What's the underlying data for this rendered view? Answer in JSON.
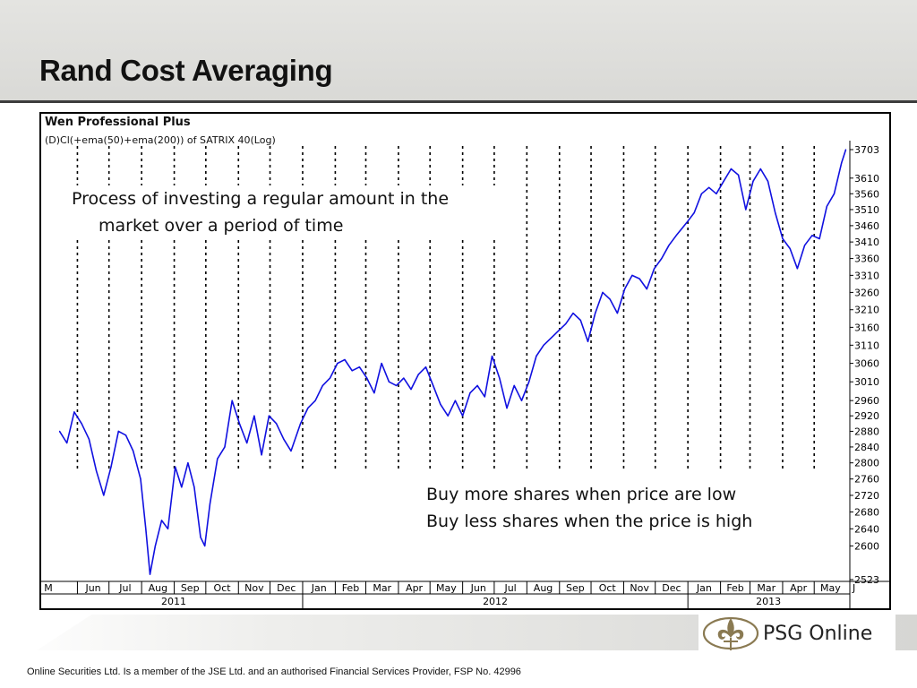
{
  "slide": {
    "title": "Rand Cost Averaging",
    "footer": "Online Securities Ltd. Is a member of the JSE Ltd. and an authorised Financial Services Provider, FSP No. 42996",
    "brand": "PSG Online"
  },
  "annotations": {
    "process_line1": "Process of investing a regular amount in the",
    "process_line2": "market over a period of time",
    "buy_more": "Buy more shares when price are low",
    "buy_less": "Buy less shares when the price is high"
  },
  "colors": {
    "series": "#1010e0",
    "rule": "#3c3c3c",
    "logo_gold": "#8a7a52"
  },
  "chart_data": {
    "type": "line",
    "title": "Wen Professional Plus",
    "subtitle": "(D)Cl(+ema(50)+ema(200)) of SATRIX 40(Log)",
    "y_scale": "log",
    "ylim": [
      2523,
      3703
    ],
    "y_ticks": [
      3703,
      3610,
      3560,
      3510,
      3460,
      3410,
      3360,
      3310,
      3260,
      3210,
      3160,
      3110,
      3060,
      3010,
      2960,
      2920,
      2880,
      2840,
      2800,
      2760,
      2720,
      2680,
      2640,
      2600,
      2523
    ],
    "x_months": [
      "M",
      "Jun",
      "Jul",
      "Aug",
      "Sep",
      "Oct",
      "Nov",
      "Dec",
      "Jan",
      "Feb",
      "Mar",
      "Apr",
      "May",
      "Jun",
      "Jul",
      "Aug",
      "Sep",
      "Oct",
      "Nov",
      "Dec",
      "Jan",
      "Feb",
      "Mar",
      "Apr",
      "May",
      "J"
    ],
    "x_years": [
      "2011",
      "2012",
      "2013"
    ],
    "grid": "vertical dashed at month boundaries",
    "series": [
      {
        "points": [
          [
            "2011-05-15",
            2880
          ],
          [
            "2011-05-22",
            2850
          ],
          [
            "2011-05-29",
            2930
          ],
          [
            "2011-06-05",
            2900
          ],
          [
            "2011-06-12",
            2860
          ],
          [
            "2011-06-19",
            2780
          ],
          [
            "2011-06-26",
            2720
          ],
          [
            "2011-07-03",
            2790
          ],
          [
            "2011-07-10",
            2880
          ],
          [
            "2011-07-17",
            2870
          ],
          [
            "2011-07-24",
            2830
          ],
          [
            "2011-07-31",
            2760
          ],
          [
            "2011-08-05",
            2640
          ],
          [
            "2011-08-09",
            2535
          ],
          [
            "2011-08-14",
            2600
          ],
          [
            "2011-08-20",
            2660
          ],
          [
            "2011-08-26",
            2640
          ],
          [
            "2011-09-02",
            2790
          ],
          [
            "2011-09-08",
            2740
          ],
          [
            "2011-09-14",
            2800
          ],
          [
            "2011-09-20",
            2740
          ],
          [
            "2011-09-26",
            2620
          ],
          [
            "2011-09-30",
            2600
          ],
          [
            "2011-10-05",
            2700
          ],
          [
            "2011-10-12",
            2810
          ],
          [
            "2011-10-19",
            2840
          ],
          [
            "2011-10-26",
            2960
          ],
          [
            "2011-11-02",
            2900
          ],
          [
            "2011-11-09",
            2850
          ],
          [
            "2011-11-16",
            2920
          ],
          [
            "2011-11-23",
            2820
          ],
          [
            "2011-11-30",
            2920
          ],
          [
            "2011-12-07",
            2900
          ],
          [
            "2011-12-14",
            2860
          ],
          [
            "2011-12-21",
            2830
          ],
          [
            "2011-12-30",
            2900
          ],
          [
            "2012-01-06",
            2940
          ],
          [
            "2012-01-13",
            2960
          ],
          [
            "2012-01-20",
            3000
          ],
          [
            "2012-01-27",
            3020
          ],
          [
            "2012-02-03",
            3060
          ],
          [
            "2012-02-10",
            3070
          ],
          [
            "2012-02-17",
            3040
          ],
          [
            "2012-02-24",
            3050
          ],
          [
            "2012-03-02",
            3020
          ],
          [
            "2012-03-09",
            2980
          ],
          [
            "2012-03-16",
            3060
          ],
          [
            "2012-03-23",
            3010
          ],
          [
            "2012-03-30",
            3000
          ],
          [
            "2012-04-06",
            3020
          ],
          [
            "2012-04-13",
            2990
          ],
          [
            "2012-04-20",
            3030
          ],
          [
            "2012-04-27",
            3050
          ],
          [
            "2012-05-04",
            3000
          ],
          [
            "2012-05-11",
            2950
          ],
          [
            "2012-05-18",
            2920
          ],
          [
            "2012-05-25",
            2960
          ],
          [
            "2012-06-01",
            2920
          ],
          [
            "2012-06-08",
            2980
          ],
          [
            "2012-06-15",
            3000
          ],
          [
            "2012-06-22",
            2970
          ],
          [
            "2012-06-29",
            3080
          ],
          [
            "2012-07-06",
            3020
          ],
          [
            "2012-07-13",
            2940
          ],
          [
            "2012-07-20",
            3000
          ],
          [
            "2012-07-27",
            2960
          ],
          [
            "2012-08-03",
            3010
          ],
          [
            "2012-08-10",
            3080
          ],
          [
            "2012-08-17",
            3110
          ],
          [
            "2012-08-24",
            3130
          ],
          [
            "2012-08-31",
            3150
          ],
          [
            "2012-09-07",
            3170
          ],
          [
            "2012-09-14",
            3200
          ],
          [
            "2012-09-21",
            3180
          ],
          [
            "2012-09-28",
            3120
          ],
          [
            "2012-10-05",
            3200
          ],
          [
            "2012-10-12",
            3260
          ],
          [
            "2012-10-19",
            3240
          ],
          [
            "2012-10-26",
            3200
          ],
          [
            "2012-11-02",
            3270
          ],
          [
            "2012-11-09",
            3310
          ],
          [
            "2012-11-16",
            3300
          ],
          [
            "2012-11-23",
            3270
          ],
          [
            "2012-11-30",
            3330
          ],
          [
            "2012-12-07",
            3360
          ],
          [
            "2012-12-14",
            3400
          ],
          [
            "2012-12-21",
            3430
          ],
          [
            "2012-12-31",
            3470
          ],
          [
            "2013-01-07",
            3500
          ],
          [
            "2013-01-14",
            3560
          ],
          [
            "2013-01-21",
            3580
          ],
          [
            "2013-01-28",
            3560
          ],
          [
            "2013-02-04",
            3600
          ],
          [
            "2013-02-11",
            3640
          ],
          [
            "2013-02-18",
            3620
          ],
          [
            "2013-02-25",
            3510
          ],
          [
            "2013-03-04",
            3600
          ],
          [
            "2013-03-11",
            3640
          ],
          [
            "2013-03-18",
            3600
          ],
          [
            "2013-03-25",
            3500
          ],
          [
            "2013-04-01",
            3420
          ],
          [
            "2013-04-08",
            3390
          ],
          [
            "2013-04-15",
            3330
          ],
          [
            "2013-04-22",
            3400
          ],
          [
            "2013-04-29",
            3430
          ],
          [
            "2013-05-06",
            3420
          ],
          [
            "2013-05-13",
            3520
          ],
          [
            "2013-05-20",
            3560
          ],
          [
            "2013-05-27",
            3660
          ],
          [
            "2013-05-31",
            3703
          ]
        ]
      }
    ]
  }
}
